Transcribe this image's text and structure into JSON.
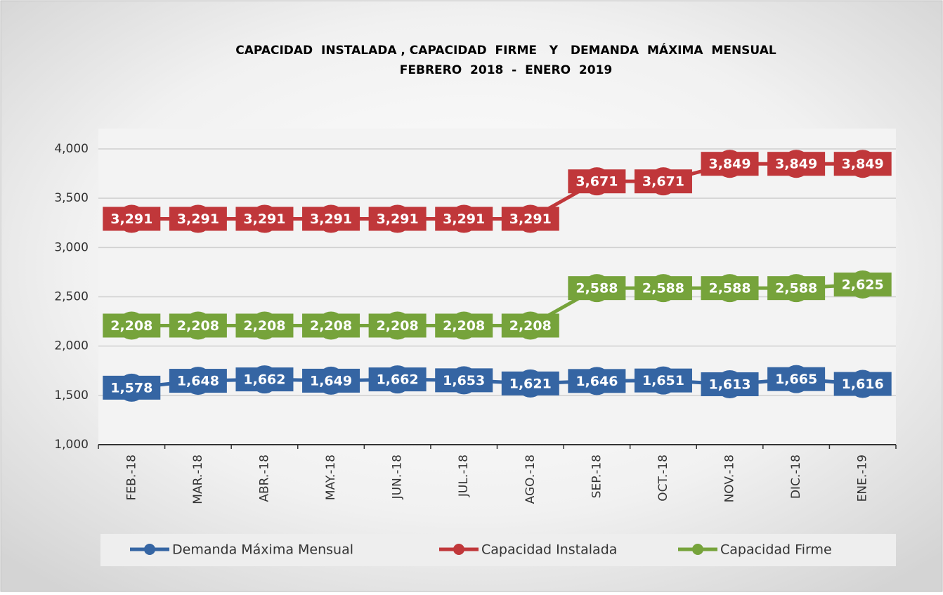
{
  "chart_data": {
    "type": "line",
    "title": "CAPACIDAD  INSTALADA , CAPACIDAD  FIRME   Y   DEMANDA  MÁXIMA  MENSUAL",
    "subtitle": "FEBRERO  2018  -  ENERO  2019",
    "categories": [
      "FEB.-18",
      "MAR.-18",
      "ABR.-18",
      "MAY.-18",
      "JUN.-18",
      "JUL.-18",
      "AGO.-18",
      "SEP.-18",
      "OCT.-18",
      "NOV.-18",
      "DIC.-18",
      "ENE.-19"
    ],
    "series": [
      {
        "name": "Demanda Máxima Mensual",
        "color": "#3565a3",
        "values": [
          1578,
          1648,
          1662,
          1649,
          1662,
          1653,
          1621,
          1646,
          1651,
          1613,
          1665,
          1616
        ],
        "value_labels": [
          "1,578",
          "1,648",
          "1,662",
          "1,649",
          "1,662",
          "1,653",
          "1,621",
          "1,646",
          "1,651",
          "1,613",
          "1,665",
          "1,616"
        ]
      },
      {
        "name": "Capacidad Instalada",
        "color": "#c0373a",
        "values": [
          3291,
          3291,
          3291,
          3291,
          3291,
          3291,
          3291,
          3671,
          3671,
          3849,
          3849,
          3849
        ],
        "value_labels": [
          "3,291",
          "3,291",
          "3,291",
          "3,291",
          "3,291",
          "3,291",
          "3,291",
          "3,671",
          "3,671",
          "3,849",
          "3,849",
          "3,849"
        ]
      },
      {
        "name": "Capacidad Firme",
        "color": "#76a33b",
        "values": [
          2208,
          2208,
          2208,
          2208,
          2208,
          2208,
          2208,
          2588,
          2588,
          2588,
          2588,
          2625
        ],
        "value_labels": [
          "2,208",
          "2,208",
          "2,208",
          "2,208",
          "2,208",
          "2,208",
          "2,208",
          "2,588",
          "2,588",
          "2,588",
          "2,588",
          "2,625"
        ]
      }
    ],
    "ylim": [
      1000,
      4000
    ],
    "yticks": [
      {
        "value": 1000,
        "label": "1,000"
      },
      {
        "value": 1500,
        "label": "1,500"
      },
      {
        "value": 2000,
        "label": "2,000"
      },
      {
        "value": 2500,
        "label": "2,500"
      },
      {
        "value": 3000,
        "label": "3,000"
      },
      {
        "value": 3500,
        "label": "3,500"
      },
      {
        "value": 4000,
        "label": "4,000"
      }
    ],
    "grid": true,
    "legend": "bottom"
  }
}
